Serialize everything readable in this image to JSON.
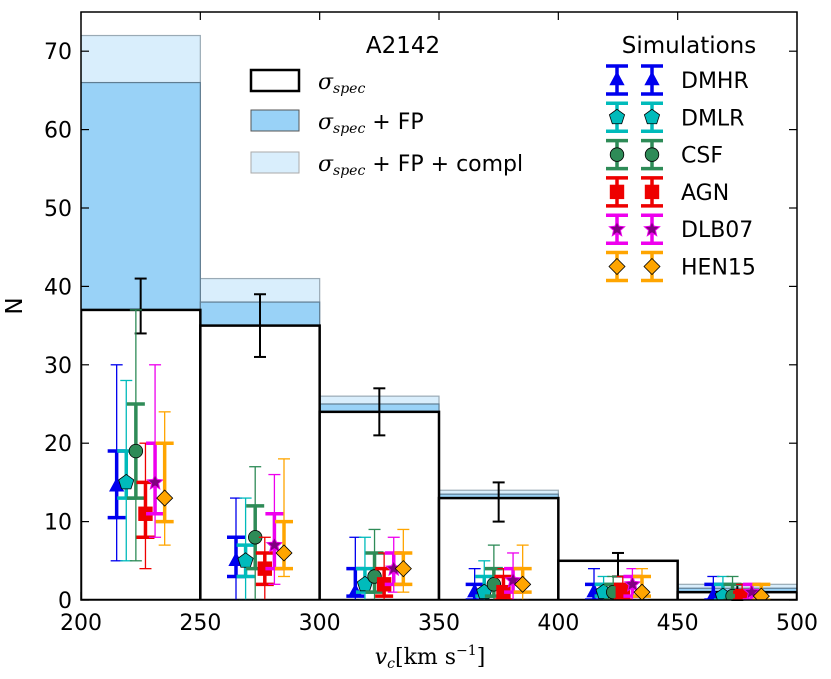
{
  "chart_data": {
    "type": "bar",
    "title": "A2142",
    "xlabel_main": "v",
    "xlabel_sub": "c",
    "xlabel_units": "[km s",
    "xlabel_exp": "−1",
    "xlabel_close": "]",
    "ylabel": "N",
    "xlim": [
      200,
      500
    ],
    "ylim": [
      0,
      75
    ],
    "xticks": [
      200,
      250,
      300,
      350,
      400,
      450,
      500
    ],
    "yticks": [
      0,
      10,
      20,
      30,
      40,
      50,
      60,
      70
    ],
    "bins": [
      {
        "lo": 200,
        "hi": 250,
        "spec": 37,
        "fp": 66,
        "compl": 72,
        "err_lo": 34,
        "err_hi": 41
      },
      {
        "lo": 250,
        "hi": 300,
        "spec": 35,
        "fp": 38,
        "compl": 41,
        "err_lo": 31,
        "err_hi": 39
      },
      {
        "lo": 300,
        "hi": 350,
        "spec": 24,
        "fp": 25,
        "compl": 26,
        "err_lo": 21,
        "err_hi": 27
      },
      {
        "lo": 350,
        "hi": 400,
        "spec": 13,
        "fp": 13.5,
        "compl": 14,
        "err_lo": 10,
        "err_hi": 15
      },
      {
        "lo": 400,
        "hi": 450,
        "spec": 5,
        "fp": 5,
        "compl": 5,
        "err_lo": 3,
        "err_hi": 6
      },
      {
        "lo": 450,
        "hi": 500,
        "spec": 1,
        "fp": 1.5,
        "compl": 2,
        "err_lo": 0,
        "err_hi": 2
      }
    ],
    "hist_legend": {
      "spec_sym": "σ",
      "spec_sub": "spec",
      "fp_suffix": " + FP",
      "compl_suffix": " + FP + compl"
    },
    "sim_legend_title": "Simulations",
    "series": [
      {
        "name": "DMHR",
        "color": "#0000ee",
        "marker": "triangle",
        "offset": -10,
        "median": [
          14.5,
          5,
          1,
          1,
          1,
          0.5
        ],
        "q1": [
          10.5,
          3,
          0.5,
          0,
          0,
          0
        ],
        "q3": [
          19,
          8,
          4,
          2,
          2,
          2
        ],
        "min": [
          5,
          0,
          0,
          0,
          0,
          0
        ],
        "max": [
          30,
          13,
          8,
          4,
          4,
          3
        ]
      },
      {
        "name": "DMLR",
        "color": "#00bbbb",
        "marker": "pentagon",
        "offset": -6,
        "median": [
          15,
          5,
          2,
          1,
          1,
          0.5
        ],
        "q1": [
          13,
          3,
          1,
          0.5,
          0.5,
          0
        ],
        "q3": [
          19,
          7,
          4,
          3,
          2,
          2
        ],
        "min": [
          5,
          0,
          0,
          0,
          0,
          0
        ],
        "max": [
          28,
          13,
          8,
          5,
          3,
          3
        ]
      },
      {
        "name": "CSF",
        "color": "#2e8b57",
        "marker": "circle",
        "offset": -2,
        "median": [
          19,
          8,
          3,
          2,
          1,
          0.5
        ],
        "q1": [
          13,
          4,
          1,
          0.5,
          0,
          0
        ],
        "q3": [
          25,
          12,
          6,
          4,
          2,
          2
        ],
        "min": [
          5,
          0,
          0,
          0,
          0,
          0
        ],
        "max": [
          37,
          17,
          9,
          7,
          3,
          3
        ]
      },
      {
        "name": "AGN",
        "color": "#ee0000",
        "marker": "square",
        "offset": 2,
        "median": [
          11,
          4,
          2,
          1,
          1,
          0.5
        ],
        "q1": [
          8,
          2,
          0.5,
          0,
          0,
          0
        ],
        "q3": [
          15,
          6,
          4,
          3,
          2,
          1
        ],
        "min": [
          4,
          0,
          0,
          0,
          0,
          0
        ],
        "max": [
          20,
          8,
          6,
          4,
          3,
          2
        ]
      },
      {
        "name": "DLB07",
        "color": "#ee00ee",
        "marker": "star",
        "offset": 6,
        "median": [
          15,
          7,
          4,
          2.5,
          2,
          1
        ],
        "q1": [
          11,
          4,
          2,
          1,
          0.5,
          0
        ],
        "q3": [
          20,
          11,
          6,
          4,
          3,
          2
        ],
        "min": [
          8,
          2,
          1,
          0,
          0,
          0
        ],
        "max": [
          30,
          16,
          8,
          6,
          4,
          2
        ]
      },
      {
        "name": "HEN15",
        "color": "#ffa500",
        "marker": "diamond",
        "offset": 10,
        "median": [
          13,
          6,
          4,
          2,
          1,
          0.5
        ],
        "q1": [
          10,
          4,
          2,
          1,
          0.5,
          0
        ],
        "q3": [
          20,
          10,
          6,
          4,
          3,
          2
        ],
        "min": [
          7,
          3,
          1,
          0,
          0,
          0
        ],
        "max": [
          24,
          18,
          9,
          7,
          4,
          2
        ]
      }
    ]
  }
}
